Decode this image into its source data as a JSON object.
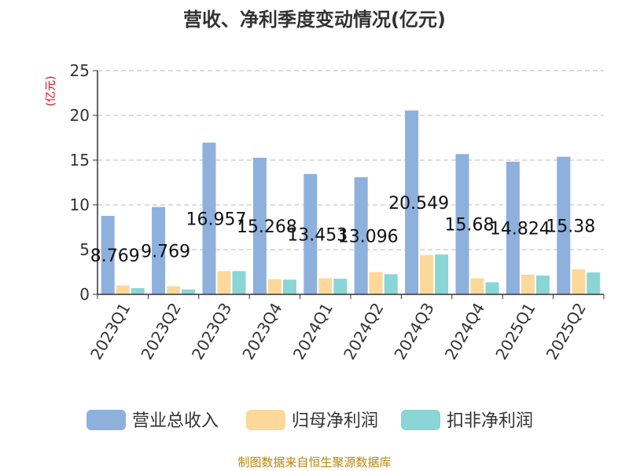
{
  "chart_data": {
    "type": "bar",
    "title": "营收、净利季度变动情况(亿元)",
    "ylabel": "(亿元)",
    "xlabel": "",
    "ylim": [
      0,
      25
    ],
    "yticks": [
      0,
      5,
      10,
      15,
      20,
      25
    ],
    "grid": true,
    "legend_position": "bottom",
    "categories": [
      "2023Q1",
      "2023Q2",
      "2023Q3",
      "2023Q4",
      "2024Q1",
      "2024Q2",
      "2024Q3",
      "2024Q4",
      "2025Q1",
      "2025Q2"
    ],
    "series": [
      {
        "name": "营业总收入",
        "color": "#8eb0dc",
        "values": [
          8.769,
          9.769,
          16.957,
          15.268,
          13.453,
          13.096,
          20.549,
          15.68,
          14.824,
          15.38
        ]
      },
      {
        "name": "归母净利润",
        "color": "#fdd89b",
        "values": [
          1.0,
          0.9,
          2.6,
          1.7,
          1.8,
          2.5,
          4.4,
          1.8,
          2.2,
          2.8
        ]
      },
      {
        "name": "扣非净利润",
        "color": "#8ad5d6",
        "values": [
          0.7,
          0.55,
          2.6,
          1.65,
          1.75,
          2.25,
          4.45,
          1.35,
          2.1,
          2.45
        ]
      }
    ],
    "data_labels": [
      "8.769",
      "9.769",
      "16.957",
      "15.268",
      "13.453",
      "13.096",
      "20.549",
      "15.68",
      "14.824",
      "15.38"
    ],
    "source": "制图数据来自恒生聚源数据库"
  }
}
